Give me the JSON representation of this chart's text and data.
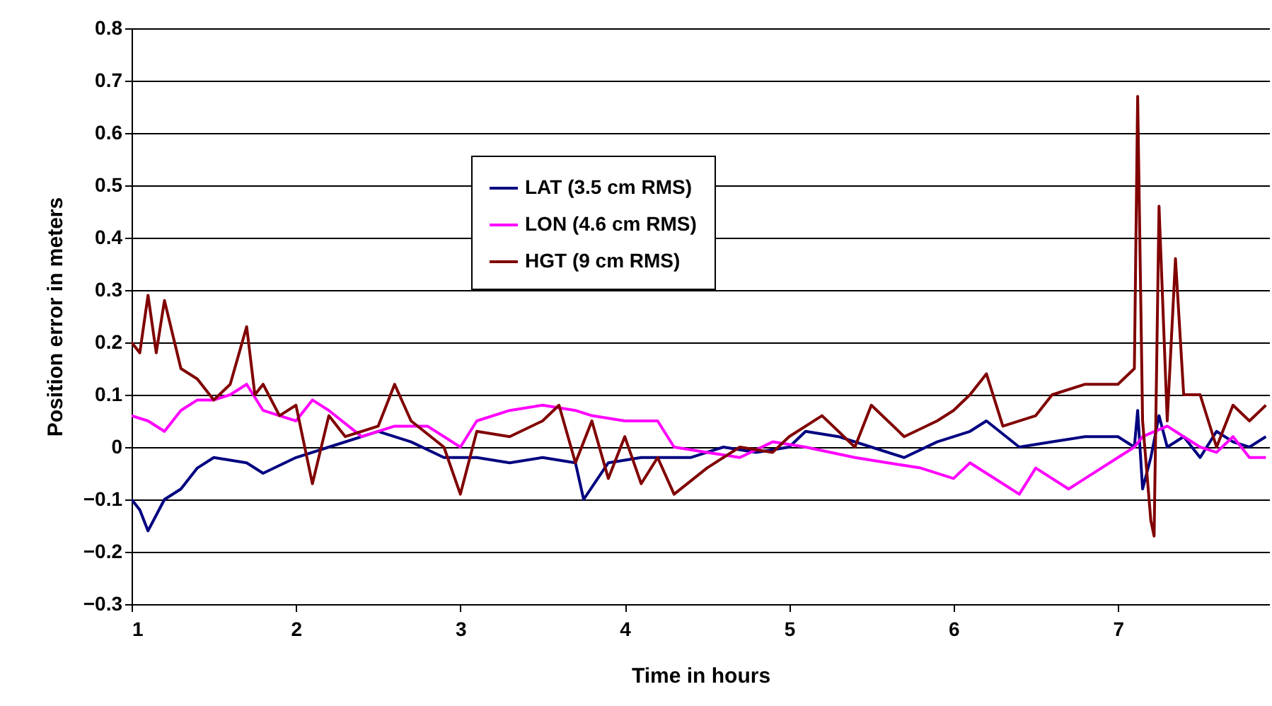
{
  "chart_data": {
    "type": "line",
    "xlabel": "Time in hours",
    "ylabel": "Position error in meters",
    "xlim": [
      1,
      7.92
    ],
    "xticks": [
      1,
      2,
      3,
      4,
      5,
      6,
      7
    ],
    "ylim": [
      -0.3,
      0.8
    ],
    "yticks": [
      -0.3,
      -0.2,
      -0.1,
      0,
      0.1,
      0.2,
      0.3,
      0.4,
      0.5,
      0.6,
      0.7,
      0.8
    ],
    "grid": "y",
    "legend": "top",
    "line_style": "solid",
    "series": [
      {
        "name": "LAT (3.5 cm RMS)",
        "color": "#000080",
        "x": [
          1.0,
          1.05,
          1.1,
          1.2,
          1.3,
          1.4,
          1.5,
          1.7,
          1.8,
          2.0,
          2.2,
          2.5,
          2.7,
          2.9,
          3.1,
          3.3,
          3.5,
          3.7,
          3.75,
          3.9,
          4.1,
          4.4,
          4.6,
          4.8,
          5.0,
          5.1,
          5.3,
          5.5,
          5.7,
          5.9,
          6.1,
          6.2,
          6.4,
          6.6,
          6.8,
          7.0,
          7.1,
          7.12,
          7.15,
          7.2,
          7.25,
          7.3,
          7.4,
          7.5,
          7.6,
          7.7,
          7.8,
          7.9
        ],
        "values": [
          -0.1,
          -0.12,
          -0.16,
          -0.1,
          -0.08,
          -0.04,
          -0.02,
          -0.03,
          -0.05,
          -0.02,
          0.0,
          0.03,
          0.01,
          -0.02,
          -0.02,
          -0.03,
          -0.02,
          -0.03,
          -0.1,
          -0.03,
          -0.02,
          -0.02,
          0.0,
          -0.01,
          0.0,
          0.03,
          0.02,
          0.0,
          -0.02,
          0.01,
          0.03,
          0.05,
          0.0,
          0.01,
          0.02,
          0.02,
          0.0,
          0.07,
          -0.08,
          -0.02,
          0.06,
          0.0,
          0.02,
          -0.02,
          0.03,
          0.01,
          0.0,
          0.02
        ]
      },
      {
        "name": "LON (4.6 cm RMS)",
        "color": "#ff00ff",
        "x": [
          1.0,
          1.1,
          1.2,
          1.3,
          1.4,
          1.5,
          1.6,
          1.7,
          1.8,
          1.9,
          2.0,
          2.1,
          2.2,
          2.4,
          2.6,
          2.8,
          3.0,
          3.1,
          3.3,
          3.5,
          3.7,
          3.8,
          4.0,
          4.2,
          4.3,
          4.5,
          4.7,
          4.9,
          5.1,
          5.4,
          5.6,
          5.8,
          6.0,
          6.1,
          6.3,
          6.4,
          6.5,
          6.7,
          6.8,
          7.0,
          7.1,
          7.15,
          7.3,
          7.4,
          7.5,
          7.6,
          7.7,
          7.8,
          7.9
        ],
        "values": [
          0.06,
          0.05,
          0.03,
          0.07,
          0.09,
          0.09,
          0.1,
          0.12,
          0.07,
          0.06,
          0.05,
          0.09,
          0.07,
          0.02,
          0.04,
          0.04,
          0.0,
          0.05,
          0.07,
          0.08,
          0.07,
          0.06,
          0.05,
          0.05,
          0.0,
          -0.01,
          -0.02,
          0.01,
          0.0,
          -0.02,
          -0.03,
          -0.04,
          -0.06,
          -0.03,
          -0.07,
          -0.09,
          -0.04,
          -0.08,
          -0.06,
          -0.02,
          0.0,
          0.02,
          0.04,
          0.02,
          0.0,
          -0.01,
          0.02,
          -0.02,
          -0.02
        ]
      },
      {
        "name": "HGT (9 cm RMS)",
        "color": "#800000",
        "x": [
          1.0,
          1.05,
          1.1,
          1.15,
          1.2,
          1.3,
          1.4,
          1.5,
          1.6,
          1.7,
          1.75,
          1.8,
          1.9,
          2.0,
          2.1,
          2.2,
          2.3,
          2.5,
          2.6,
          2.7,
          2.9,
          3.0,
          3.1,
          3.3,
          3.5,
          3.6,
          3.7,
          3.8,
          3.9,
          4.0,
          4.1,
          4.2,
          4.3,
          4.5,
          4.7,
          4.9,
          5.0,
          5.2,
          5.4,
          5.5,
          5.7,
          5.9,
          6.0,
          6.1,
          6.2,
          6.3,
          6.5,
          6.6,
          6.8,
          6.9,
          7.0,
          7.1,
          7.12,
          7.15,
          7.2,
          7.22,
          7.25,
          7.3,
          7.35,
          7.4,
          7.5,
          7.6,
          7.7,
          7.8,
          7.9
        ],
        "values": [
          0.2,
          0.18,
          0.29,
          0.18,
          0.28,
          0.15,
          0.13,
          0.09,
          0.12,
          0.23,
          0.1,
          0.12,
          0.06,
          0.08,
          -0.07,
          0.06,
          0.02,
          0.04,
          0.12,
          0.05,
          0.0,
          -0.09,
          0.03,
          0.02,
          0.05,
          0.08,
          -0.03,
          0.05,
          -0.06,
          0.02,
          -0.07,
          -0.02,
          -0.09,
          -0.04,
          0.0,
          -0.01,
          0.02,
          0.06,
          0.0,
          0.08,
          0.02,
          0.05,
          0.07,
          0.1,
          0.14,
          0.04,
          0.06,
          0.1,
          0.12,
          0.12,
          0.12,
          0.15,
          0.67,
          0.05,
          -0.14,
          -0.17,
          0.46,
          0.05,
          0.36,
          0.1,
          0.1,
          0.0,
          0.08,
          0.05,
          0.08
        ]
      }
    ]
  }
}
